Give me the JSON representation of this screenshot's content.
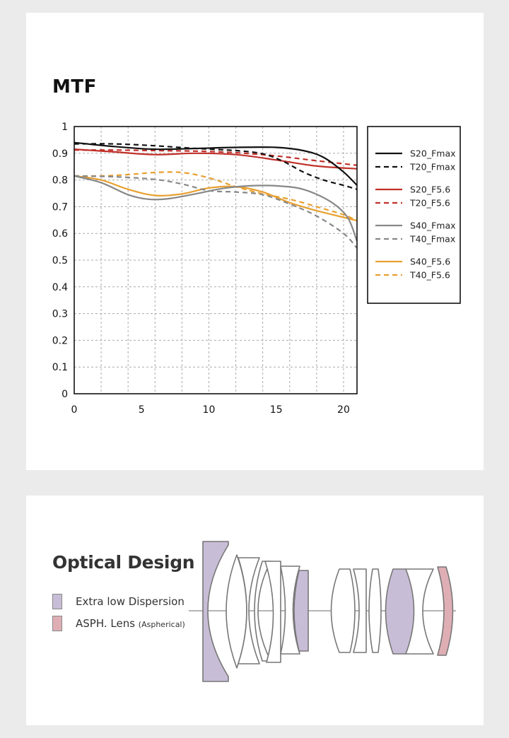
{
  "chart_title": "MTF",
  "chart_data": {
    "type": "line",
    "title": "MTF",
    "xlabel": "",
    "ylabel": "",
    "xlim": [
      0,
      21
    ],
    "ylim": [
      0,
      1
    ],
    "x_ticks": [
      0,
      5,
      10,
      15,
      20
    ],
    "y_ticks": [
      0,
      0.1,
      0.2,
      0.3,
      0.4,
      0.5,
      0.6,
      0.7,
      0.8,
      0.9,
      1
    ],
    "x_tick_labels": [
      "0",
      "5",
      "10",
      "15",
      "20"
    ],
    "y_tick_labels": [
      "0",
      "0.1",
      "0.2",
      "0.3",
      "0.4",
      "0.5",
      "0.6",
      "0.7",
      "0.8",
      "0.9",
      "1"
    ],
    "grid": true,
    "legend_position": "right",
    "series": [
      {
        "name": "S20_Fmax",
        "color": "#111111",
        "dash": false,
        "x": [
          0,
          3,
          6,
          9,
          12,
          15,
          17,
          18.5,
          20,
          21
        ],
        "y": [
          0.94,
          0.925,
          0.915,
          0.918,
          0.922,
          0.922,
          0.91,
          0.885,
          0.83,
          0.78
        ]
      },
      {
        "name": "T20_Fmax",
        "color": "#111111",
        "dash": true,
        "x": [
          0,
          3,
          6,
          9,
          12,
          14,
          15.5,
          17,
          18.5,
          20,
          21
        ],
        "y": [
          0.935,
          0.935,
          0.928,
          0.918,
          0.91,
          0.898,
          0.87,
          0.83,
          0.8,
          0.78,
          0.765
        ]
      },
      {
        "name": "S20_F5.6",
        "color": "#c0302a",
        "dash": false,
        "x": [
          0,
          3,
          6,
          9,
          12,
          15,
          18,
          21
        ],
        "y": [
          0.915,
          0.905,
          0.895,
          0.9,
          0.895,
          0.875,
          0.852,
          0.842
        ]
      },
      {
        "name": "T20_F5.6",
        "color": "#c0302a",
        "dash": true,
        "x": [
          0,
          3,
          6,
          9,
          12,
          15,
          18,
          21
        ],
        "y": [
          0.912,
          0.912,
          0.91,
          0.908,
          0.902,
          0.89,
          0.872,
          0.855
        ]
      },
      {
        "name": "S40_Fmax",
        "color": "#888888",
        "dash": false,
        "x": [
          0,
          2,
          4,
          5.5,
          7,
          9,
          11,
          13,
          15,
          17,
          19,
          20.3,
          21
        ],
        "y": [
          0.815,
          0.79,
          0.745,
          0.728,
          0.73,
          0.748,
          0.768,
          0.778,
          0.778,
          0.765,
          0.72,
          0.66,
          0.57
        ]
      },
      {
        "name": "T40_Fmax",
        "color": "#888888",
        "dash": true,
        "x": [
          0,
          3,
          6,
          8,
          10,
          12,
          14,
          16,
          18,
          20,
          21
        ],
        "y": [
          0.815,
          0.812,
          0.802,
          0.785,
          0.76,
          0.755,
          0.745,
          0.71,
          0.665,
          0.6,
          0.545
        ]
      },
      {
        "name": "S40_F5.6",
        "color": "#e8a030",
        "dash": false,
        "x": [
          0,
          2,
          4,
          6,
          8,
          10,
          12,
          14,
          16,
          18,
          20,
          21
        ],
        "y": [
          0.815,
          0.8,
          0.765,
          0.742,
          0.748,
          0.77,
          0.775,
          0.755,
          0.715,
          0.685,
          0.66,
          0.648
        ]
      },
      {
        "name": "T40_F5.6",
        "color": "#e8a030",
        "dash": true,
        "x": [
          0,
          2,
          4,
          6,
          8,
          10,
          12,
          14,
          16,
          18,
          20,
          21
        ],
        "y": [
          0.815,
          0.815,
          0.82,
          0.828,
          0.828,
          0.808,
          0.775,
          0.748,
          0.728,
          0.7,
          0.67,
          0.648
        ]
      }
    ]
  },
  "optical": {
    "title": "Optical Design",
    "legend": [
      {
        "label": "Extra low Dispersion",
        "sub": "",
        "color": "#c8bdd6"
      },
      {
        "label": "ASPH. Lens ",
        "sub": "(Aspherical)",
        "color": "#dfaeb5"
      }
    ]
  }
}
